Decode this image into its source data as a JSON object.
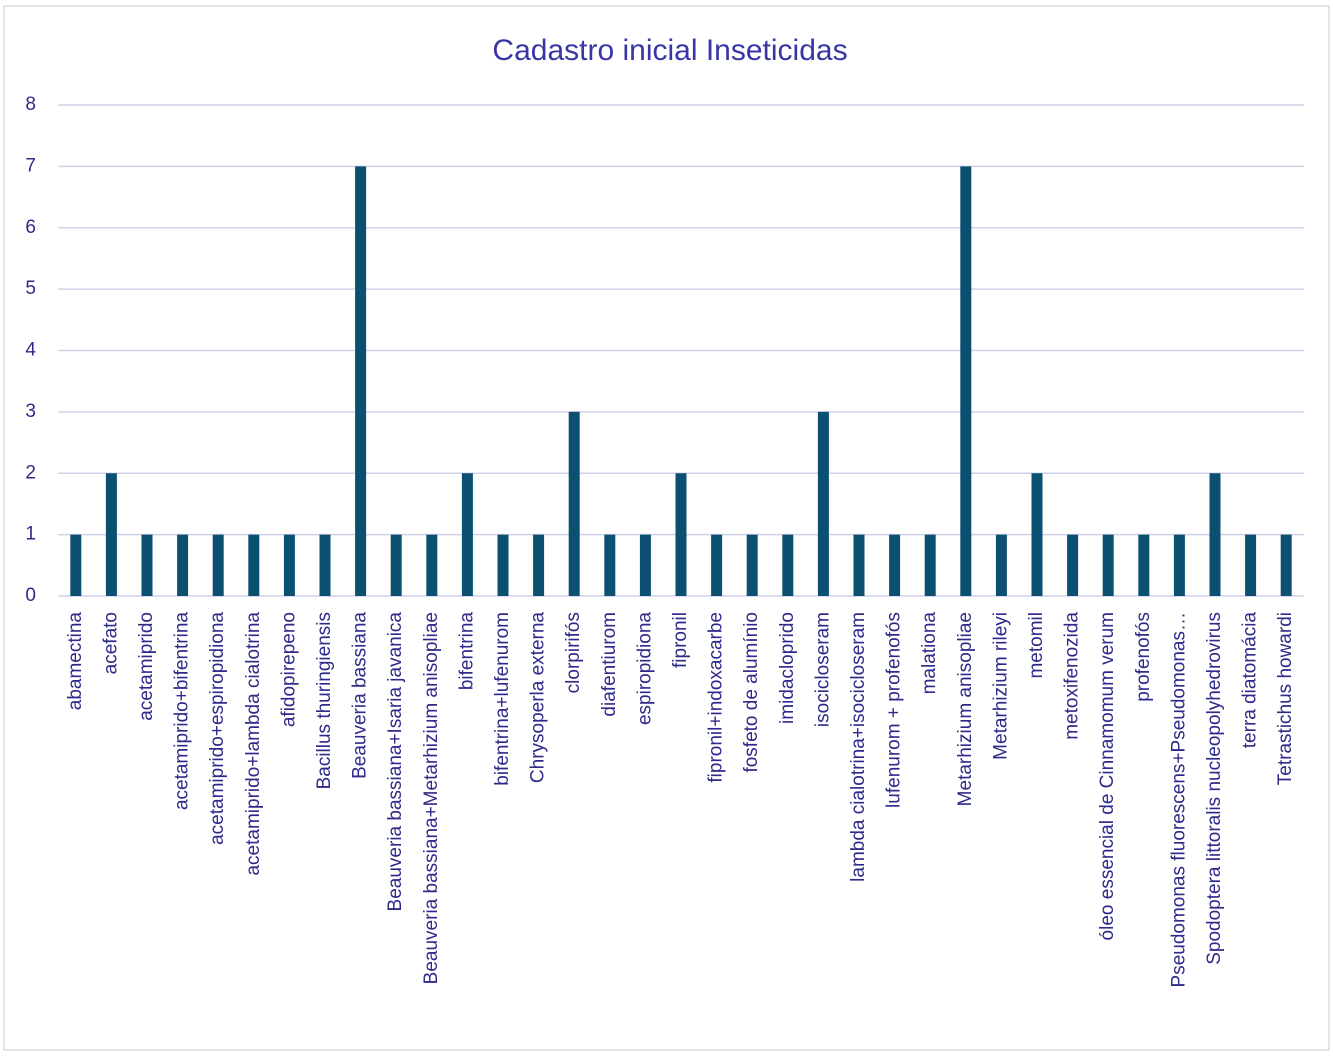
{
  "chart_data": {
    "type": "bar",
    "title": "Cadastro inicial Inseticidas",
    "categories": [
      "abamectina",
      "acefato",
      "acetamiprido",
      "acetamiprido+bifentrina",
      "acetamiprido+espiropidiona",
      "acetamiprido+lambda cialotrina",
      "afidopirepeno",
      "Bacillus thuringiensis",
      "Beauveria bassiana",
      "Beauveria bassiana+Isaria javanica",
      "Beauveria bassiana+Metarhizium anisopliae",
      "bifentrina",
      "bifentrina+lufenurom",
      "Chrysoperla externa",
      "clorpirifós",
      "diafentiurom",
      "espiropidiona",
      "fipronil",
      "fipronil+indoxacarbe",
      "fosfeto de alumínio",
      "imidacloprido",
      "isocicloseram",
      "lambda cialotrina+isocicloseram",
      "lufenurom + profenofós",
      "malationa",
      "Metarhizium anisopliae",
      "Metarhizium rileyi",
      "metomil",
      "metoxifenozida",
      "óleo essencial de Cinnamomum verum",
      "profenofós",
      "Pseudomonas fluorescens+Pseudomonas…",
      "Spodoptera littoralis nucleopolyhedrovirus",
      "terra diatomácia",
      "Tetrastichus howardi"
    ],
    "values": [
      1,
      2,
      1,
      1,
      1,
      1,
      1,
      1,
      7,
      1,
      1,
      2,
      1,
      1,
      3,
      1,
      1,
      2,
      1,
      1,
      1,
      3,
      1,
      1,
      1,
      7,
      1,
      2,
      1,
      1,
      1,
      1,
      2,
      1,
      1
    ],
    "color": "#0b4f71",
    "ylim": [
      0,
      8
    ],
    "yticks": [
      0,
      1,
      2,
      3,
      4,
      5,
      6,
      7,
      8
    ],
    "grid": true
  }
}
